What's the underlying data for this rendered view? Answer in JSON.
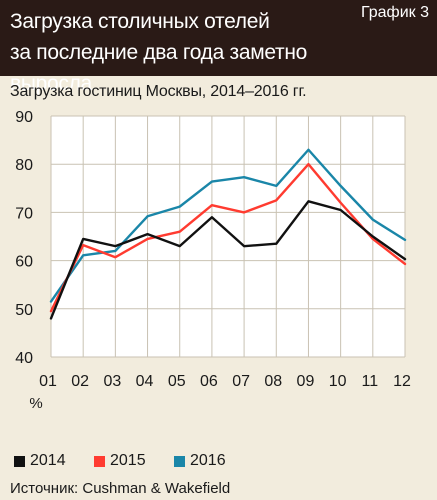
{
  "header": {
    "title": "Загрузка столичных отелей\nза последние два года заметно выросла",
    "tag": "График 3"
  },
  "chart_data": {
    "type": "line",
    "title": "Загрузка гостиниц Москвы, 2014–2016 гг.",
    "xlabel": "%",
    "ylabel": "",
    "categories": [
      "01",
      "02",
      "03",
      "04",
      "05",
      "06",
      "07",
      "08",
      "09",
      "10",
      "11",
      "12"
    ],
    "ylim": [
      40,
      90
    ],
    "yticks": [
      40,
      50,
      60,
      70,
      80,
      90
    ],
    "grid": true,
    "legend_position": "bottom",
    "series": [
      {
        "name": "2014",
        "color": "#111111",
        "values": [
          48,
          64.5,
          63,
          65.5,
          63,
          69,
          63,
          63.5,
          72.3,
          70.5,
          65,
          60.3
        ]
      },
      {
        "name": "2015",
        "color": "#ff3b30",
        "values": [
          49.5,
          63.2,
          60.7,
          64.5,
          66,
          71.5,
          70,
          72.5,
          80,
          72,
          64.5,
          59.3
        ]
      },
      {
        "name": "2016",
        "color": "#1a86a8",
        "values": [
          51.5,
          61.1,
          62,
          69.2,
          71.2,
          76.4,
          77.3,
          75.5,
          83,
          75.5,
          68.5,
          64.3
        ]
      }
    ]
  },
  "source": "Источник: Cushman & Wakefield"
}
